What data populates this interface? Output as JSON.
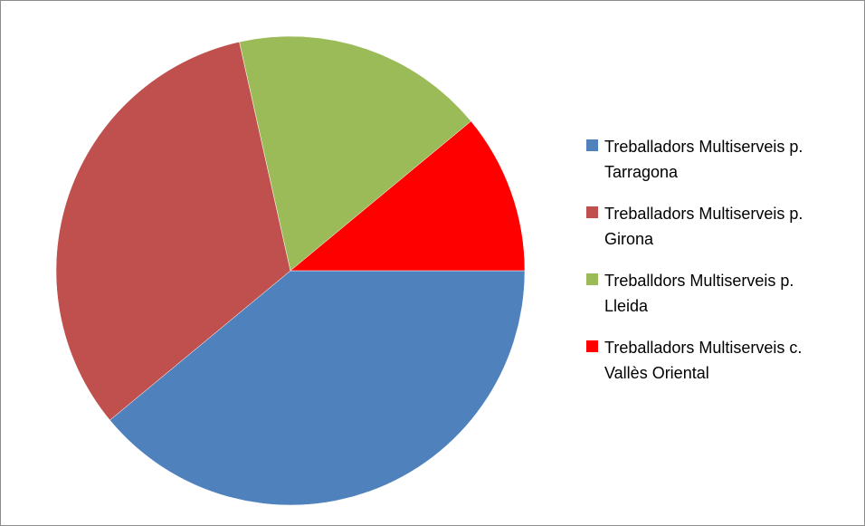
{
  "chart_data": {
    "type": "pie",
    "categories": [
      "Treballadors Multiserveis p. Tarragona",
      "Treballadors Multiserveis p. Girona",
      "Treballdors Multiserveis p. Lleida",
      "Treballadors Multiserveis c. Vallès Oriental"
    ],
    "values": [
      39,
      32.5,
      17.5,
      11
    ],
    "colors": [
      "#4f81bd",
      "#c0504d",
      "#9bbb59",
      "#ff0000"
    ],
    "legend": "right"
  }
}
